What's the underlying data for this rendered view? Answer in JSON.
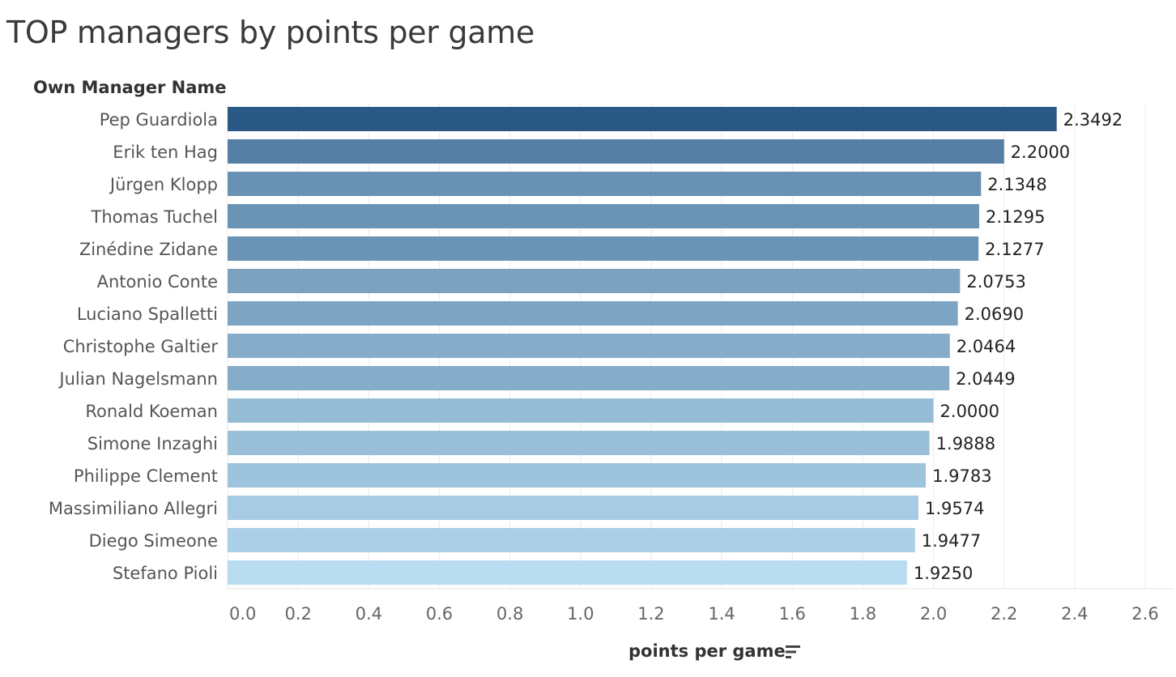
{
  "chart_data": {
    "type": "bar",
    "orientation": "horizontal",
    "title": "TOP managers by points per game",
    "row_header": "Own Manager Name",
    "xlabel": "points per game",
    "categories": [
      "Pep Guardiola",
      "Erik ten Hag",
      "Jürgen Klopp",
      "Thomas Tuchel",
      "Zinédine Zidane",
      "Antonio Conte",
      "Luciano Spalletti",
      "Christophe Galtier",
      "Julian Nagelsmann",
      "Ronald Koeman",
      "Simone Inzaghi",
      "Philippe Clement",
      "Massimiliano Allegri",
      "Diego Simeone",
      "Stefano Pioli"
    ],
    "values": [
      2.3492,
      2.2,
      2.1348,
      2.1295,
      2.1277,
      2.0753,
      2.069,
      2.0464,
      2.0449,
      2.0,
      1.9888,
      1.9783,
      1.9574,
      1.9477,
      1.925
    ],
    "value_labels": [
      "2.3492",
      "2.2000",
      "2.1348",
      "2.1295",
      "2.1277",
      "2.0753",
      "2.0690",
      "2.0464",
      "2.0449",
      "2.0000",
      "1.9888",
      "1.9783",
      "1.9574",
      "1.9477",
      "1.9250"
    ],
    "xlim": [
      0,
      2.6
    ],
    "x_ticks": [
      "0.0",
      "0.2",
      "0.4",
      "0.6",
      "0.8",
      "1.0",
      "1.2",
      "1.4",
      "1.6",
      "1.8",
      "2.0",
      "2.2",
      "2.4",
      "2.6"
    ],
    "x_tick_values": [
      0.0,
      0.2,
      0.4,
      0.6,
      0.8,
      1.0,
      1.2,
      1.4,
      1.6,
      1.8,
      2.0,
      2.2,
      2.4,
      2.6
    ],
    "grid": true,
    "color_encoding": "sequential blue by value",
    "color_scale": {
      "low": "#b9dcf0",
      "high": "#2b5985"
    },
    "sort_icon": "sort-descending-icon"
  }
}
